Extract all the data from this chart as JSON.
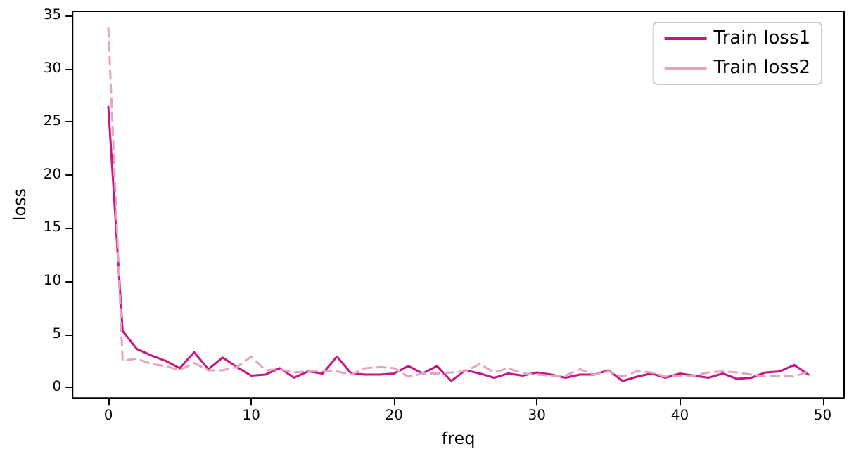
{
  "chart_data": {
    "type": "line",
    "xlabel": "freq",
    "ylabel": "loss",
    "x": [
      0,
      1,
      2,
      3,
      4,
      5,
      6,
      7,
      8,
      9,
      10,
      11,
      12,
      13,
      14,
      15,
      16,
      17,
      18,
      19,
      20,
      21,
      22,
      23,
      24,
      25,
      26,
      27,
      28,
      29,
      30,
      31,
      32,
      33,
      34,
      35,
      36,
      37,
      38,
      39,
      40,
      41,
      42,
      43,
      44,
      45,
      46,
      47,
      48,
      49
    ],
    "series": [
      {
        "name": "Train loss1",
        "color": "#c71585",
        "line_style": "solid",
        "values": [
          26.4,
          5.3,
          3.6,
          3.0,
          2.5,
          1.8,
          3.3,
          1.7,
          2.8,
          1.9,
          1.1,
          1.2,
          1.8,
          0.9,
          1.5,
          1.3,
          2.9,
          1.3,
          1.2,
          1.2,
          1.3,
          2.0,
          1.3,
          2.0,
          0.6,
          1.6,
          1.3,
          0.9,
          1.3,
          1.1,
          1.4,
          1.2,
          0.9,
          1.2,
          1.2,
          1.6,
          0.6,
          1.0,
          1.3,
          0.9,
          1.3,
          1.1,
          0.9,
          1.3,
          0.8,
          0.9,
          1.4,
          1.5,
          2.1,
          1.2
        ]
      },
      {
        "name": "Train loss2",
        "color": "#e6a3bd",
        "line_style": "dashed",
        "values": [
          33.8,
          2.5,
          2.7,
          2.2,
          2.0,
          1.6,
          2.3,
          1.6,
          1.6,
          1.9,
          2.9,
          1.6,
          1.7,
          1.4,
          1.5,
          1.5,
          1.5,
          1.2,
          1.8,
          1.9,
          1.8,
          1.0,
          1.3,
          1.3,
          1.4,
          1.5,
          2.2,
          1.4,
          1.8,
          1.3,
          1.2,
          1.1,
          1.1,
          1.7,
          1.2,
          1.5,
          1.0,
          1.5,
          1.4,
          1.0,
          1.1,
          1.1,
          1.4,
          1.5,
          1.4,
          1.2,
          1.0,
          1.1,
          1.0,
          1.5
        ]
      }
    ],
    "xlim": [
      -2.5,
      51.5
    ],
    "xticks": [
      0,
      10,
      20,
      30,
      40,
      50
    ],
    "ylim": [
      -1,
      35.4
    ],
    "yticks": [
      0,
      5,
      10,
      15,
      20,
      25,
      30,
      35
    ],
    "grid": false,
    "legend": "top right",
    "marker": "none"
  }
}
